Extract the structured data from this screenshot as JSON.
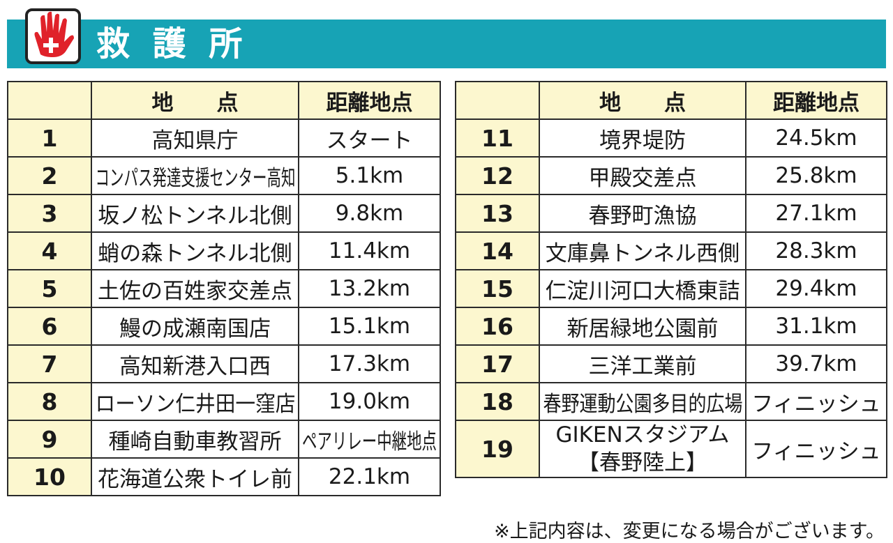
{
  "header": {
    "title": "救 護 所"
  },
  "tables": [
    {
      "columns": [
        "地　　点",
        "距離地点"
      ],
      "rows": [
        [
          "1",
          "高知県庁",
          "スタート"
        ],
        [
          "2",
          "コンパス発達支援センター高知",
          "5.1km"
        ],
        [
          "3",
          "坂ノ松トンネル北側",
          "9.8km"
        ],
        [
          "4",
          "蛸の森トンネル北側",
          "11.4km"
        ],
        [
          "5",
          "土佐の百姓家交差点",
          "13.2km"
        ],
        [
          "6",
          "鰻の成瀬南国店",
          "15.1km"
        ],
        [
          "7",
          "高知新港入口西",
          "17.3km"
        ],
        [
          "8",
          "ローソン仁井田一窪店",
          "19.0km"
        ],
        [
          "9",
          "種崎自動車教習所",
          "ペアリレー中継地点"
        ],
        [
          "10",
          "花海道公衆トイレ前",
          "22.1km"
        ]
      ]
    },
    {
      "columns": [
        "地　　点",
        "距離地点"
      ],
      "rows": [
        [
          "11",
          "境界堤防",
          "24.5km"
        ],
        [
          "12",
          "甲殿交差点",
          "25.8km"
        ],
        [
          "13",
          "春野町漁協",
          "27.1km"
        ],
        [
          "14",
          "文庫鼻トンネル西側",
          "28.3km"
        ],
        [
          "15",
          "仁淀川河口大橋東詰",
          "29.4km"
        ],
        [
          "16",
          "新居緑地公園前",
          "31.1km"
        ],
        [
          "17",
          "三洋工業前",
          "39.7km"
        ],
        [
          "18",
          "春野運動公園多目的広場",
          "フィニッシュ"
        ],
        [
          "19",
          [
            "GIKENスタジアム",
            "【春野陸上】"
          ],
          "フィニッシュ"
        ]
      ]
    }
  ],
  "note": "※上記内容は、変更になる場合がございます。"
}
